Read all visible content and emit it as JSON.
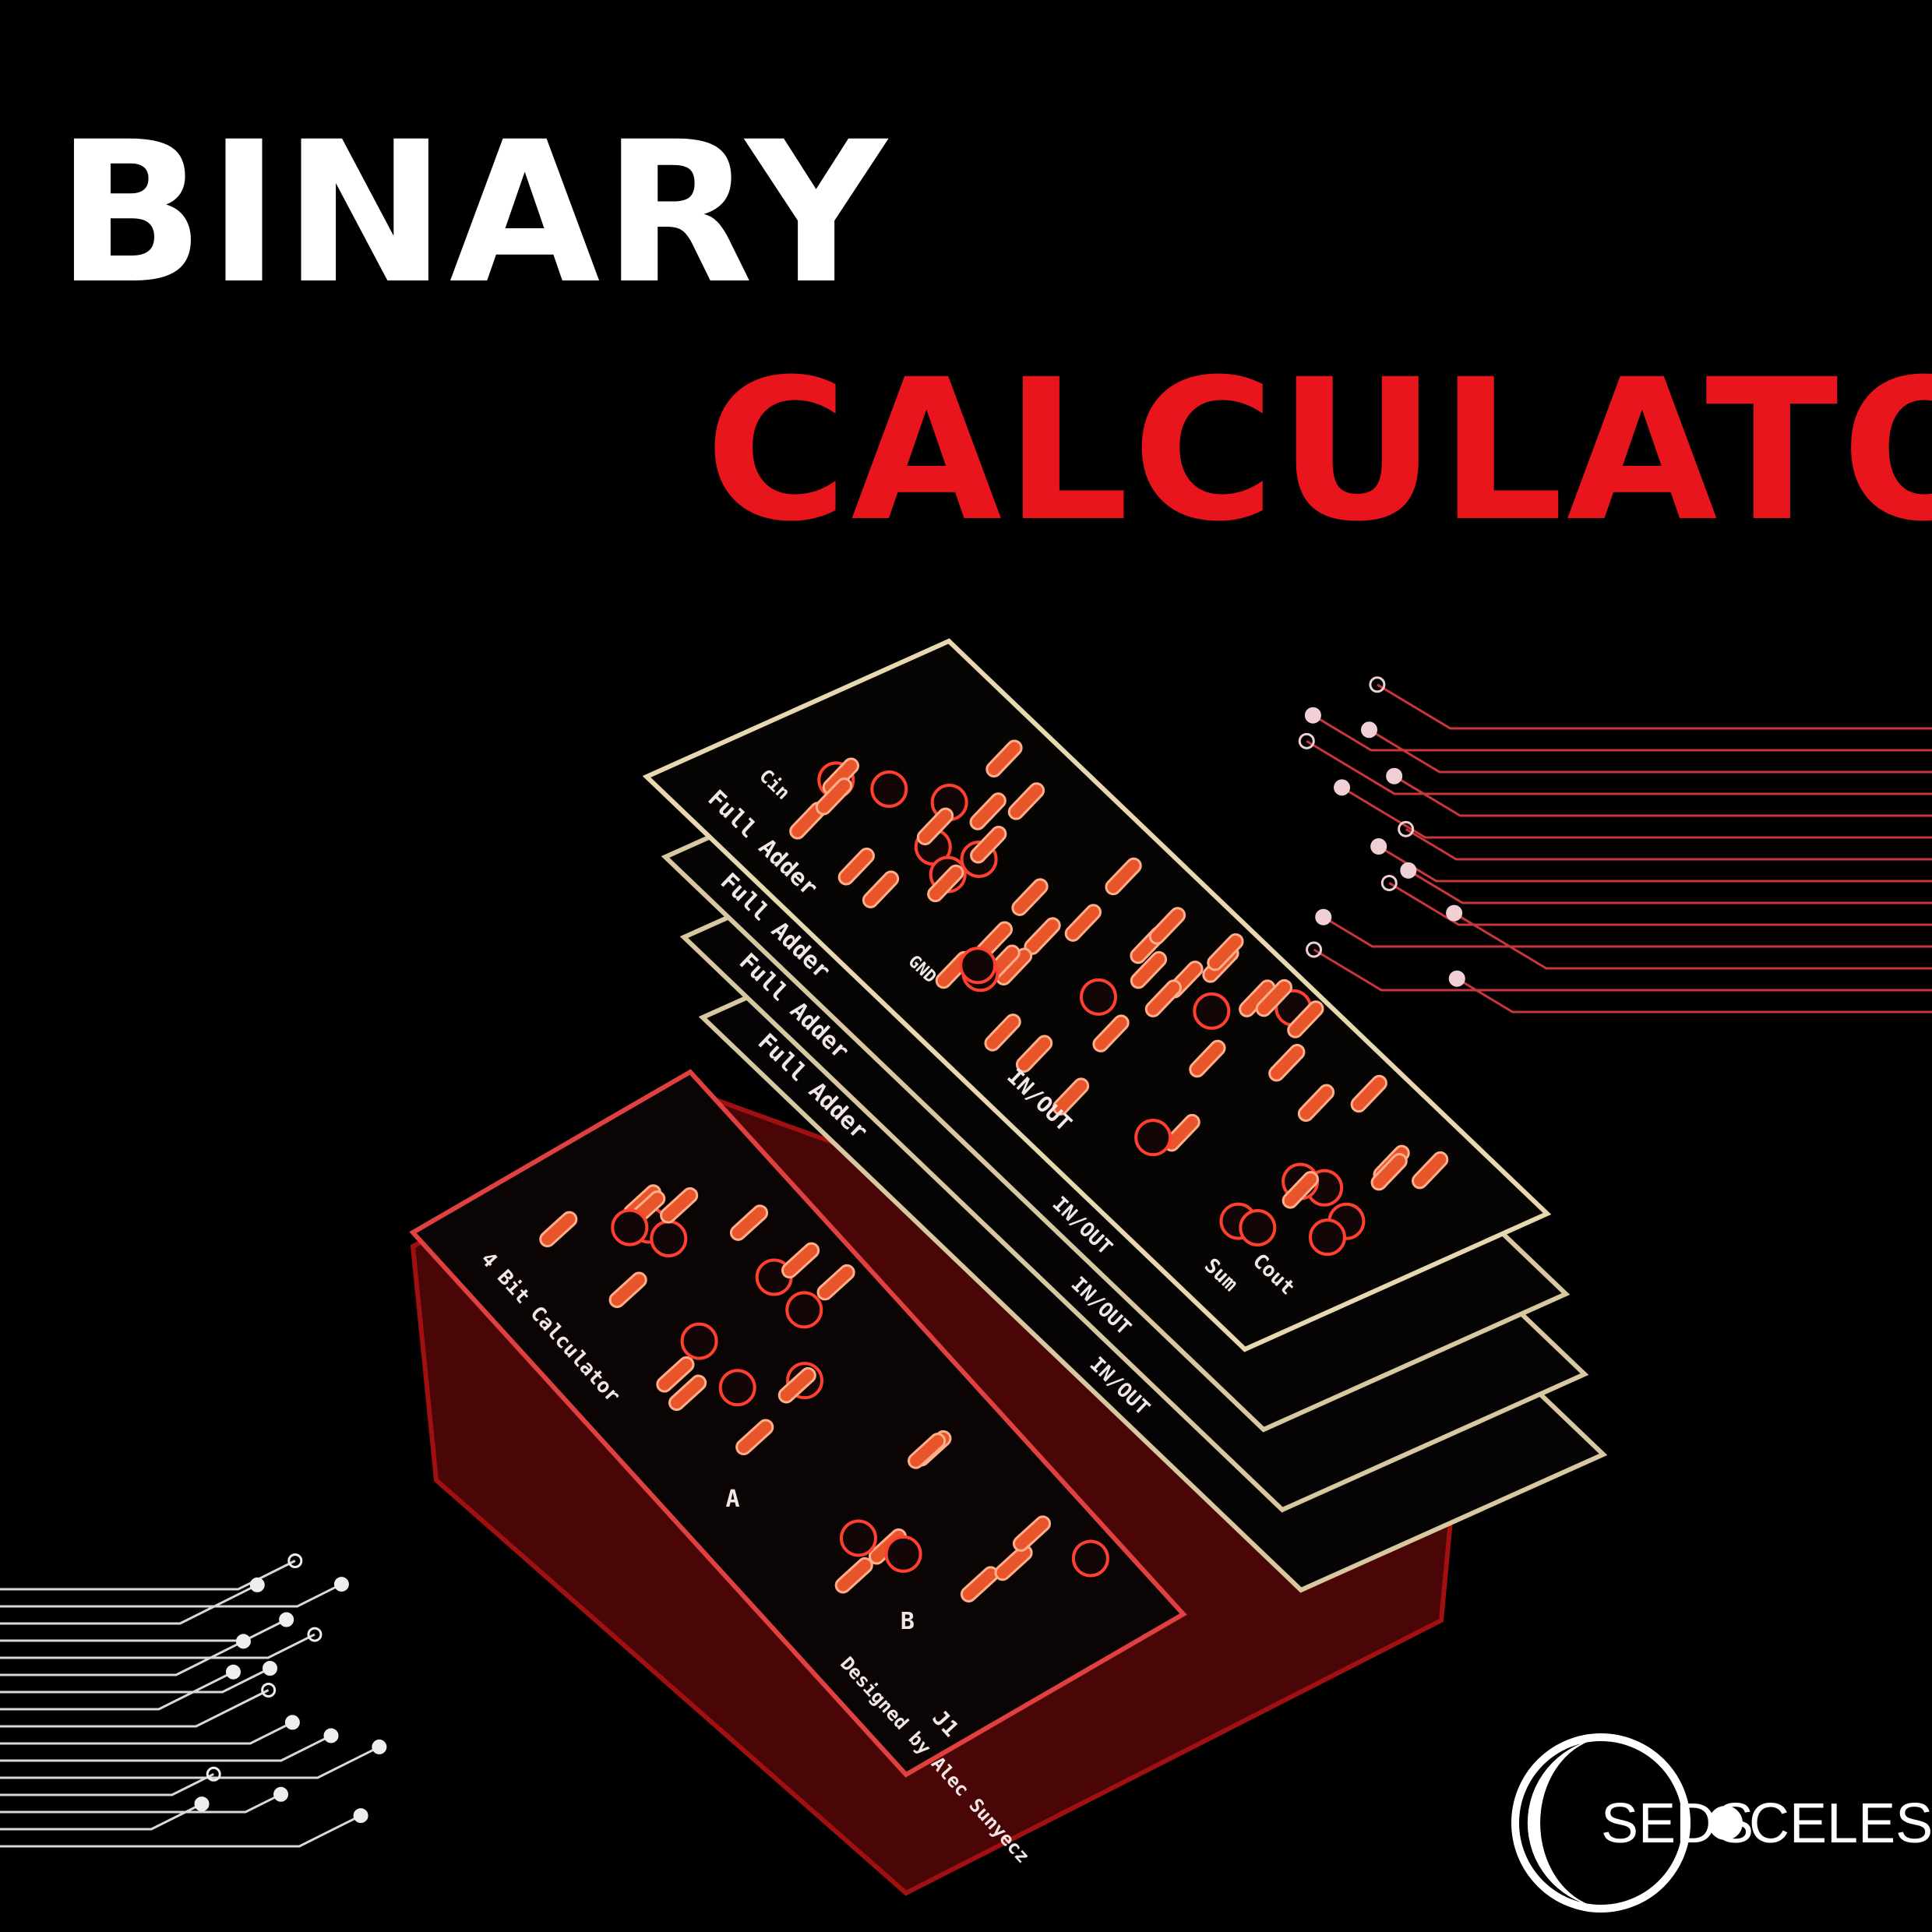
{
  "title": {
    "line1": "BINARY",
    "line2": "CALCULATOR"
  },
  "top_board": {
    "name": "Full Adder",
    "io": "IN/OUT",
    "carry_in": "Cin",
    "carry_out": "Cout",
    "sum": "Sum",
    "ground": "GND"
  },
  "lower_boards": [
    {
      "name": "Full Adder",
      "io": "IN/OUT"
    },
    {
      "name": "Full Adder",
      "io": "IN/OUT"
    },
    {
      "name": "Full Adder",
      "io": "IN/OUT"
    }
  ],
  "base_board": {
    "name": "4 Bit Calculator",
    "input_a": "A",
    "input_b": "B",
    "credit": "Designed by Alec Sunyecz",
    "jack": "J1"
  },
  "logo": {
    "left": "SEDS",
    "right": "CELESTIA"
  }
}
